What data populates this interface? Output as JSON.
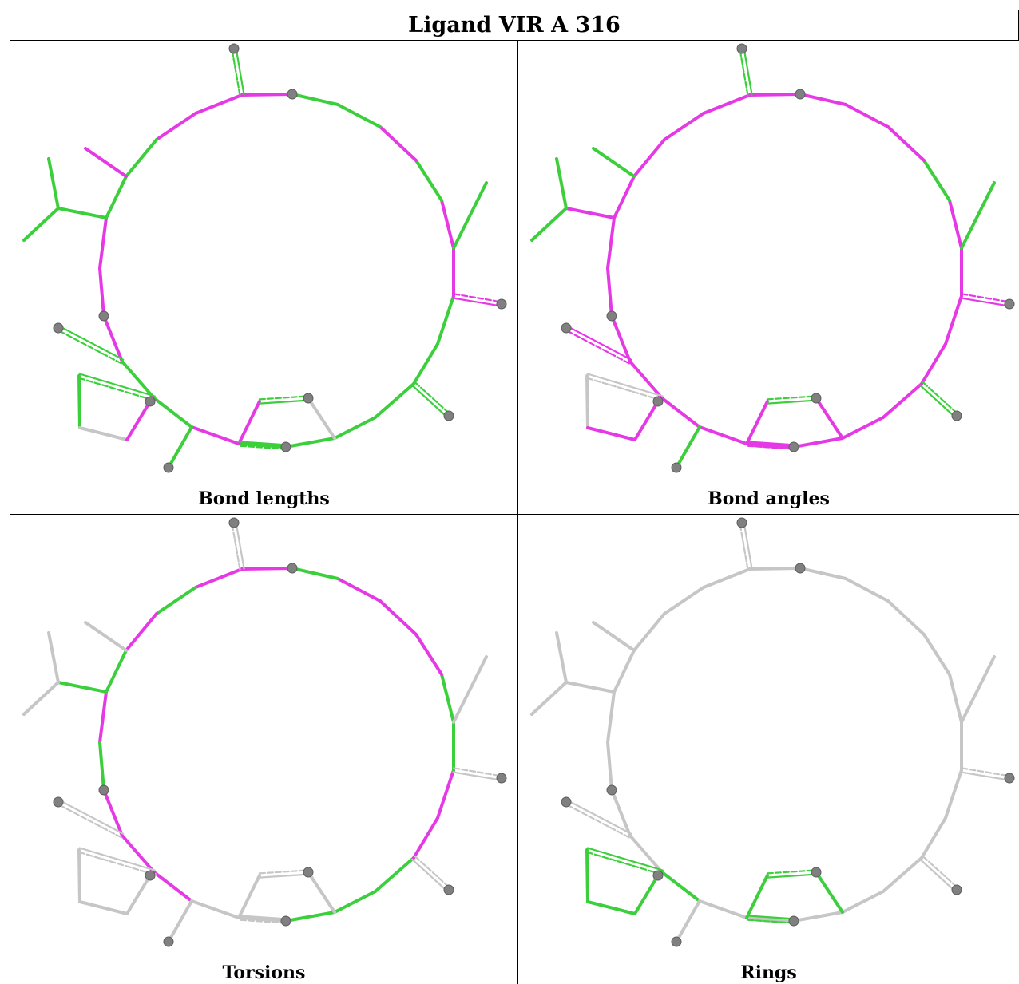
{
  "title": "Ligand VIR A 316",
  "panels": [
    {
      "id": "bond-lengths",
      "caption": "Bond lengths"
    },
    {
      "id": "bond-angles",
      "caption": "Bond angles"
    },
    {
      "id": "torsions",
      "caption": "Torsions"
    },
    {
      "id": "rings",
      "caption": "Rings"
    }
  ],
  "legend_colors": {
    "outlier": "#e639e6",
    "ok": "#3ccf3c",
    "not_assessed": "#c6c6c6",
    "atom": "#808080"
  }
}
